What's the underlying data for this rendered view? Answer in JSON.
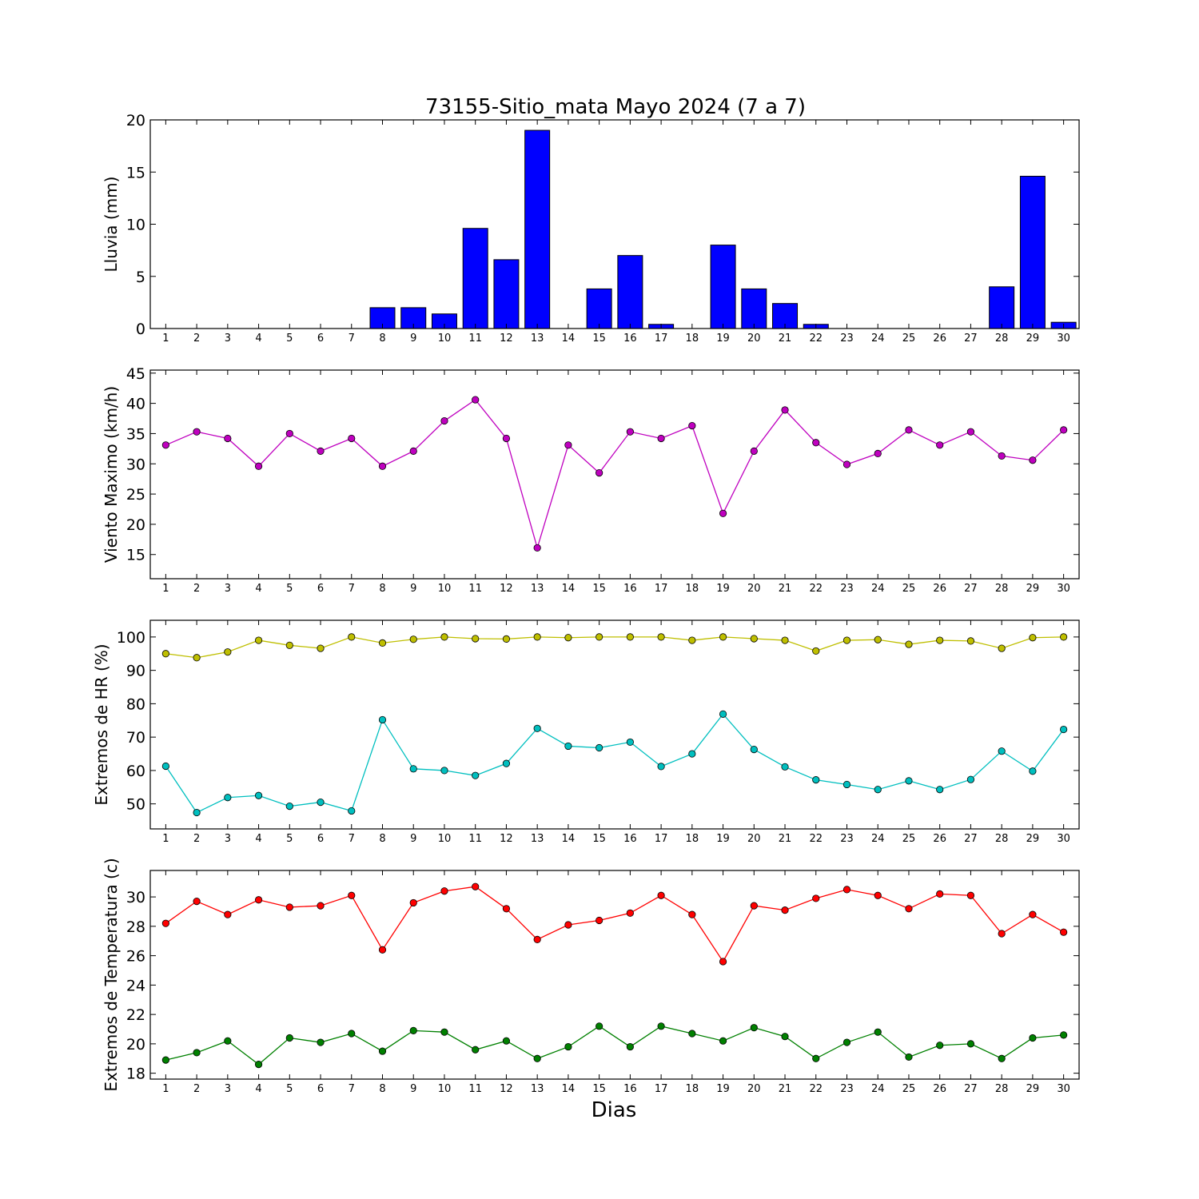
{
  "figure": {
    "title": "73155-Sitio_mata Mayo 2024  (7 a 7)",
    "xlabel": "Dias"
  },
  "chart_data": [
    {
      "type": "bar",
      "ylabel": "Lluvia (mm)",
      "x": [
        1,
        2,
        3,
        4,
        5,
        6,
        7,
        8,
        9,
        10,
        11,
        12,
        13,
        14,
        15,
        16,
        17,
        18,
        19,
        20,
        21,
        22,
        23,
        24,
        25,
        26,
        27,
        28,
        29,
        30
      ],
      "ylim": [
        0,
        20
      ],
      "yticks": [
        0,
        5,
        10,
        15,
        20
      ],
      "series": [
        {
          "color": "#0000ff",
          "values": [
            0,
            0,
            0,
            0,
            0,
            0,
            0,
            2.0,
            2.0,
            1.4,
            9.6,
            6.6,
            19.0,
            0,
            3.8,
            7.0,
            0.4,
            0,
            8.0,
            3.8,
            2.4,
            0.4,
            0,
            0,
            0,
            0,
            0,
            4.0,
            14.6,
            0.6
          ]
        }
      ]
    },
    {
      "type": "line",
      "ylabel": "Viento Maximo (km/h)",
      "x": [
        1,
        2,
        3,
        4,
        5,
        6,
        7,
        8,
        9,
        10,
        11,
        12,
        13,
        14,
        15,
        16,
        17,
        18,
        19,
        20,
        21,
        22,
        23,
        24,
        25,
        26,
        27,
        28,
        29,
        30
      ],
      "ylim": [
        11,
        45.5
      ],
      "yticks": [
        15,
        20,
        25,
        30,
        35,
        40,
        45
      ],
      "series": [
        {
          "color": "#bf00bf",
          "values": [
            33.1,
            35.3,
            34.2,
            29.6,
            35.0,
            32.1,
            34.2,
            29.6,
            32.1,
            37.1,
            40.6,
            34.2,
            16.1,
            33.1,
            28.5,
            35.3,
            34.2,
            36.3,
            21.8,
            32.1,
            38.9,
            33.5,
            29.9,
            31.7,
            35.6,
            33.1,
            35.3,
            31.3,
            30.6,
            35.6
          ]
        }
      ]
    },
    {
      "type": "line",
      "ylabel": "Extremos de HR (%)",
      "x": [
        1,
        2,
        3,
        4,
        5,
        6,
        7,
        8,
        9,
        10,
        11,
        12,
        13,
        14,
        15,
        16,
        17,
        18,
        19,
        20,
        21,
        22,
        23,
        24,
        25,
        26,
        27,
        28,
        29,
        30
      ],
      "ylim": [
        42.5,
        105
      ],
      "yticks": [
        50,
        60,
        70,
        80,
        90,
        100
      ],
      "series": [
        {
          "color": "#bfbf00",
          "values": [
            95.0,
            93.8,
            95.5,
            99.0,
            97.5,
            96.6,
            100,
            98.2,
            99.3,
            100,
            99.5,
            99.4,
            100,
            99.8,
            100,
            100,
            100,
            99.0,
            100,
            99.5,
            99.0,
            95.8,
            99.0,
            99.2,
            97.8,
            99.0,
            98.8,
            96.6,
            99.8,
            100
          ]
        },
        {
          "color": "#00bfbf",
          "values": [
            61.3,
            47.4,
            51.9,
            52.5,
            49.3,
            50.5,
            47.9,
            75.2,
            60.5,
            60.0,
            58.5,
            62.1,
            72.6,
            67.3,
            66.8,
            68.5,
            61.2,
            65.0,
            76.9,
            66.3,
            61.1,
            57.2,
            55.8,
            54.3,
            56.9,
            54.3,
            57.3,
            65.8,
            59.8,
            72.3
          ]
        }
      ]
    },
    {
      "type": "line",
      "ylabel": "Extremos de Temperatura (c)",
      "x": [
        1,
        2,
        3,
        4,
        5,
        6,
        7,
        8,
        9,
        10,
        11,
        12,
        13,
        14,
        15,
        16,
        17,
        18,
        19,
        20,
        21,
        22,
        23,
        24,
        25,
        26,
        27,
        28,
        29,
        30
      ],
      "ylim": [
        17.6,
        31.8
      ],
      "yticks": [
        18,
        20,
        22,
        24,
        26,
        28,
        30
      ],
      "series": [
        {
          "color": "#ff0000",
          "values": [
            28.2,
            29.7,
            28.8,
            29.8,
            29.3,
            29.4,
            30.1,
            26.4,
            29.6,
            30.4,
            30.7,
            29.2,
            27.1,
            28.1,
            28.4,
            28.9,
            30.1,
            28.8,
            25.6,
            29.4,
            29.1,
            29.9,
            30.5,
            30.1,
            29.2,
            30.2,
            30.1,
            27.5,
            28.8,
            27.6
          ]
        },
        {
          "color": "#008000",
          "values": [
            18.9,
            19.4,
            20.2,
            18.6,
            20.4,
            20.1,
            20.7,
            19.5,
            20.9,
            20.8,
            19.6,
            20.2,
            19.0,
            19.8,
            21.2,
            19.8,
            21.2,
            20.7,
            20.2,
            21.1,
            20.5,
            19.0,
            20.1,
            20.8,
            19.1,
            19.9,
            20.0,
            19.0,
            20.4,
            20.6
          ]
        }
      ]
    }
  ]
}
